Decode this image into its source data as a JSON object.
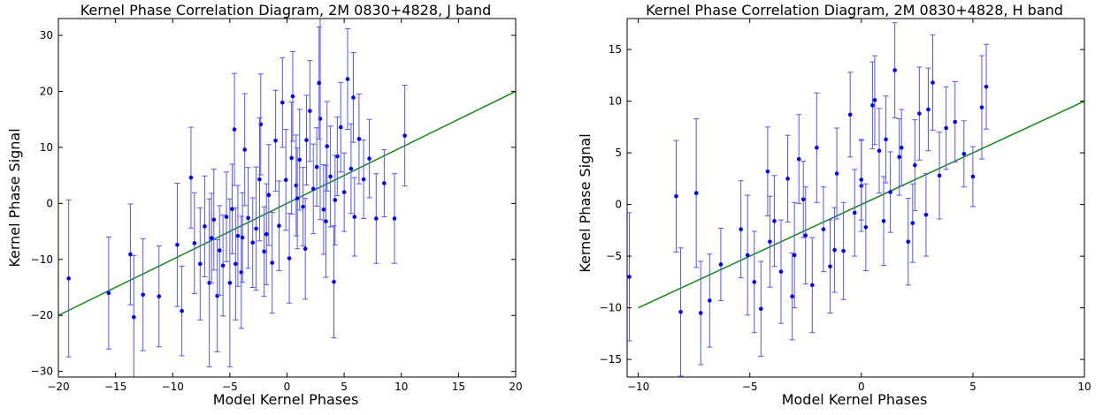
{
  "chart_data": [
    {
      "type": "scatter",
      "title": "Kernel Phase Correlation Diagram, 2M 0830+4828, J band",
      "xlabel": "Model Kernel Phases",
      "ylabel": "Kernel Phase Signal",
      "xlim": [
        -20,
        20
      ],
      "ylim": [
        -31,
        33
      ],
      "xticks": [
        "−20",
        "−15",
        "−10",
        "−5",
        "0",
        "5",
        "10",
        "15",
        "20"
      ],
      "xtick_values": [
        -20,
        -15,
        -10,
        -5,
        0,
        5,
        10,
        15,
        20
      ],
      "yticks": [
        "30",
        "20",
        "10",
        "0",
        "−10",
        "−20",
        "−30"
      ],
      "ytick_values": [
        30,
        20,
        10,
        0,
        -10,
        -20,
        -30
      ],
      "grid": false,
      "line": {
        "x": [
          -20,
          20
        ],
        "y": [
          -20,
          20
        ],
        "color": "#228b22"
      },
      "series": [
        {
          "color": "#0000ff",
          "errorbar_color": "#5555ff",
          "x": [
            -19.1,
            -15.6,
            -13.7,
            -13.4,
            -12.6,
            -11.2,
            -9.6,
            -9.2,
            -8.4,
            -8.1,
            -7.6,
            -7.2,
            -6.8,
            -6.4,
            -6.1,
            -5.9,
            -5.6,
            -5.3,
            -5.0,
            -4.8,
            -4.6,
            -4.3,
            -4.0,
            -3.7,
            -3.4,
            -3.0,
            -2.7,
            -2.3,
            -2.0,
            -1.6,
            -1.3,
            -1.0,
            -0.7,
            -0.4,
            -0.1,
            0.2,
            0.5,
            0.8,
            1.1,
            1.4,
            1.7,
            2.0,
            2.3,
            2.6,
            2.9,
            3.2,
            3.5,
            3.8,
            4.1,
            4.4,
            4.7,
            5.0,
            5.3,
            5.6,
            5.9,
            6.3,
            6.7,
            7.2,
            7.8,
            8.5,
            9.4,
            10.3,
            -4.5,
            -3.9,
            -1.8,
            0.4,
            2.8,
            4.2,
            5.8,
            3.4,
            -2.4,
            -6.6,
            1.6,
            0.9
          ],
          "y": [
            -13.4,
            -16.0,
            -9.1,
            -20.3,
            -16.3,
            -16.6,
            -7.4,
            -19.2,
            4.6,
            -7.1,
            -10.8,
            -4.1,
            -14.2,
            -2.9,
            -16.5,
            -8.4,
            -11.1,
            -2.4,
            -14.2,
            -1.0,
            13.2,
            -5.8,
            -12.3,
            9.6,
            -2.6,
            -7.0,
            -4.5,
            14.1,
            -8.6,
            1.5,
            -10.6,
            11.2,
            -4.0,
            18.0,
            4.2,
            -9.8,
            19.1,
            3.2,
            7.8,
            -0.6,
            11.3,
            16.5,
            2.6,
            6.5,
            15.1,
            -1.1,
            10.2,
            4.8,
            -14.0,
            8.4,
            13.6,
            2.0,
            22.2,
            6.2,
            -2.4,
            11.5,
            4.3,
            8.0,
            -2.7,
            3.6,
            -2.7,
            12.1,
            -10.8,
            -6.1,
            -5.5,
            8.1,
            21.5,
            0.6,
            18.9,
            -3.2,
            4.3,
            -6.2,
            -8.1,
            0.9
          ],
          "err": [
            14,
            10,
            9,
            11,
            10,
            9,
            11,
            8,
            9,
            9,
            10,
            9,
            15,
            9,
            10,
            8,
            9,
            8,
            15,
            8,
            10,
            9,
            10,
            10,
            9,
            8,
            11,
            9,
            8,
            9,
            9,
            9,
            8,
            8,
            9,
            8,
            8,
            9,
            9,
            7,
            8,
            9,
            8,
            7,
            18,
            8,
            8,
            9,
            10,
            7,
            8,
            7,
            9,
            8,
            7,
            8,
            7,
            7,
            8,
            6,
            8,
            9,
            10,
            8,
            9,
            10,
            10,
            8,
            8,
            10,
            11,
            8,
            9,
            9
          ]
        }
      ]
    },
    {
      "type": "scatter",
      "title": "Kernel Phase Correlation Diagram, 2M 0830+4828, H band",
      "xlabel": "Model Kernel Phases",
      "ylabel": "Kernel Phase Signal",
      "xlim": [
        -10.5,
        10
      ],
      "ylim": [
        -16.7,
        18
      ],
      "xticks": [
        "−10",
        "−5",
        "0",
        "5",
        "10"
      ],
      "xtick_values": [
        -10,
        -5,
        0,
        5,
        10
      ],
      "yticks": [
        "15",
        "10",
        "5",
        "0",
        "−5",
        "−10",
        "−15"
      ],
      "ytick_values": [
        15,
        10,
        5,
        0,
        -5,
        -10,
        -15
      ],
      "grid": false,
      "line": {
        "x": [
          -10,
          10
        ],
        "y": [
          -10,
          10
        ],
        "color": "#228b22"
      },
      "series": [
        {
          "color": "#0000ff",
          "errorbar_color": "#5555ff",
          "x": [
            -10.4,
            -8.3,
            -8.1,
            -7.4,
            -7.2,
            -6.3,
            -5.4,
            -5.1,
            -4.8,
            -4.5,
            -4.2,
            -3.9,
            -3.6,
            -3.3,
            -3.0,
            -2.8,
            -2.5,
            -2.2,
            -2.0,
            -1.7,
            -1.4,
            -1.1,
            -0.8,
            -0.5,
            -0.3,
            0.0,
            0.2,
            0.5,
            0.8,
            1.0,
            1.3,
            1.5,
            1.8,
            2.1,
            2.4,
            2.6,
            2.9,
            3.2,
            3.5,
            3.8,
            4.2,
            4.6,
            5.0,
            5.4,
            5.6,
            -6.8,
            -4.1,
            -2.6,
            -1.2,
            0.6,
            1.1,
            2.3,
            3.0,
            -3.1,
            0.0,
            1.7
          ],
          "y": [
            -7.0,
            0.8,
            -10.4,
            1.1,
            -10.5,
            -5.8,
            -2.4,
            -4.9,
            -7.5,
            -10.1,
            3.2,
            -1.6,
            -6.5,
            2.5,
            -4.9,
            4.4,
            -3.0,
            -7.8,
            5.5,
            -2.4,
            -6.0,
            3.0,
            -4.5,
            8.7,
            -0.8,
            1.8,
            -2.2,
            9.6,
            5.2,
            -1.6,
            1.2,
            13.0,
            5.5,
            -3.6,
            3.8,
            8.8,
            -1.0,
            11.8,
            2.8,
            7.4,
            8.0,
            4.9,
            2.7,
            9.4,
            11.4,
            -9.3,
            -3.6,
            0.5,
            -4.4,
            10.1,
            6.3,
            -1.8,
            9.2,
            -8.9,
            2.4,
            4.6
          ],
          "err": [
            6.2,
            5.4,
            6.2,
            7.2,
            5,
            3.5,
            4.7,
            5.8,
            4.9,
            4.6,
            4.3,
            4.4,
            5.0,
            4.2,
            5.1,
            4.3,
            4.7,
            4.6,
            5.3,
            4.1,
            4.5,
            4.4,
            4.7,
            4.1,
            4.2,
            4.4,
            4.2,
            4.2,
            4.1,
            4.3,
            3.9,
            4.6,
            3.7,
            4.2,
            4.4,
            4.5,
            4.0,
            4.6,
            4.2,
            4.0,
            3.9,
            3.2,
            2.9,
            5.0,
            4.1,
            4.5,
            4.4,
            3.7,
            4.1,
            4.3,
            4.2,
            3.8,
            4.0,
            4.2,
            3.9,
            3.7
          ]
        }
      ]
    }
  ]
}
